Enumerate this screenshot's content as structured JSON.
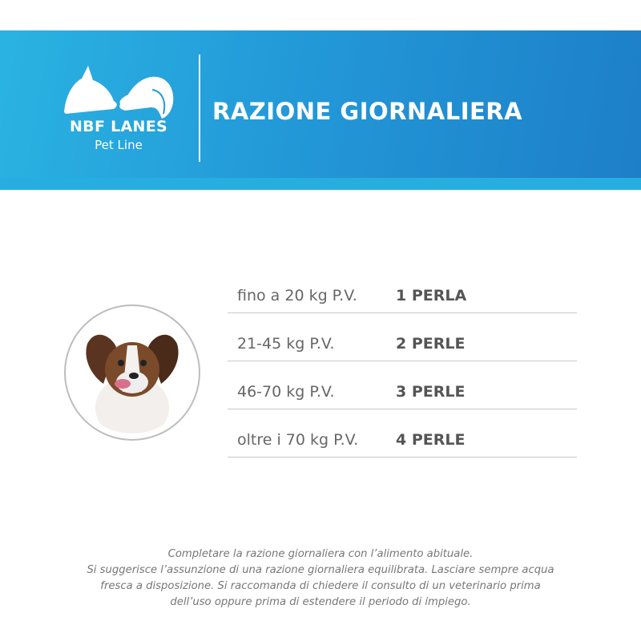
{
  "header": {
    "brand": "NBF LANES",
    "sub_brand": "Pet Line",
    "title": "RAZIONE GIORNALIERA",
    "colors": {
      "header_start": "#2ab3e2",
      "header_end": "#1d7fc8",
      "strip": "#27aee0"
    }
  },
  "photo": {
    "icon": "dog-photo"
  },
  "dosage": [
    {
      "weight": "fino a 20 kg P.V.",
      "amount": "1 PERLA"
    },
    {
      "weight": "21-45 kg P.V.",
      "amount": "2 PERLE"
    },
    {
      "weight": "46-70 kg P.V.",
      "amount": "3 PERLE"
    },
    {
      "weight": "oltre i 70 kg P.V.",
      "amount": "4 PERLE"
    }
  ],
  "notes": [
    "Completare la razione giornaliera con l’alimento abituale.",
    "Si suggerisce l’assunzione di una razione giornaliera equilibrata. Lasciare sempre acqua",
    "fresca a disposizione. Si raccomanda di chiedere il consulto di un veterinario prima",
    "dell’uso oppure prima di estendere il periodo di impiego."
  ]
}
